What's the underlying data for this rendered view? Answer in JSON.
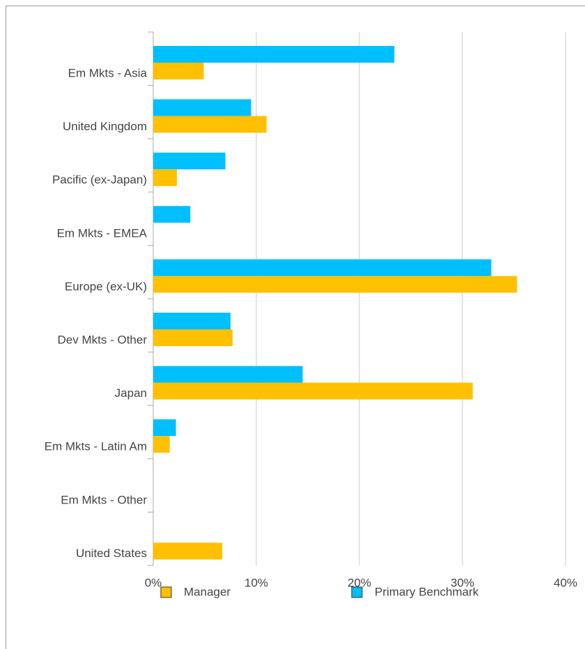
{
  "chart_data": {
    "type": "bar",
    "orientation": "horizontal",
    "categories": [
      "Em Mkts - Asia",
      "United Kingdom",
      "Pacific (ex-Japan)",
      "Em Mkts - EMEA",
      "Europe (ex-UK)",
      "Dev Mkts - Other",
      "Japan",
      "Em Mkts - Latin Am",
      "Em Mkts - Other",
      "United States"
    ],
    "series": [
      {
        "name": "Manager",
        "color": "#ffc000",
        "values": [
          4.9,
          11.0,
          2.3,
          0,
          35.3,
          7.7,
          31.0,
          1.6,
          0,
          6.7
        ]
      },
      {
        "name": "Primary Benchmark",
        "color": "#00bfff",
        "values": [
          23.4,
          9.5,
          7.0,
          3.6,
          32.8,
          7.5,
          14.5,
          2.2,
          0,
          0
        ]
      }
    ],
    "xlim": [
      0,
      40
    ],
    "xticks": [
      {
        "value": 0,
        "label": "0%"
      },
      {
        "value": 10,
        "label": "10%"
      },
      {
        "value": 20,
        "label": "20%"
      },
      {
        "value": 30,
        "label": "30%"
      },
      {
        "value": 40,
        "label": "40%"
      }
    ],
    "grid": true,
    "legend": "bottom"
  }
}
